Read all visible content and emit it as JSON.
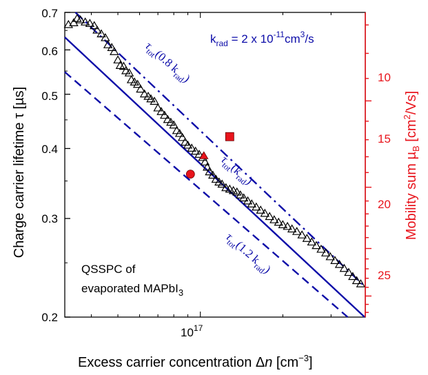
{
  "chart_data": {
    "type": "scatter",
    "xlabel": "Excess carrier concentration Δn [cm⁻³]",
    "ylabel": "Charge carrier lifetime τ [µs]",
    "y2label": "Mobility sum µB [cm²/Vs]",
    "x_scale": "log",
    "y_scale": "log",
    "xlim": [
      3.2e+16,
      4e+17
    ],
    "ylim": [
      0.2,
      0.7
    ],
    "x_tick_labels": [
      {
        "value": 1e+17,
        "label": "10^17"
      }
    ],
    "y_ticks": [
      0.2,
      0.3,
      0.4,
      0.5,
      0.6,
      0.7
    ],
    "y_tick_labels": [
      "0.2",
      "0.3",
      "0.4",
      "0.5",
      "0.6",
      "0.7"
    ],
    "y2_ticks": [
      10,
      15,
      20,
      25
    ],
    "y2_tick_labels": [
      "10",
      "15",
      "20",
      "25"
    ],
    "y2_lim_at_ybounds": {
      "at_y_0.7": 6.6,
      "at_y_0.2": 27.6
    },
    "annotation_krad": "k_rad = 2 x 10^-11 cm³/s",
    "inset_text": [
      "QSSPC of",
      "evaporated MAPbI₃"
    ],
    "series": [
      {
        "marker": "open-triangle",
        "color": "#000000",
        "points": [
          [
            3.3e+16,
            0.665
          ],
          [
            3.45e+16,
            0.67
          ],
          [
            3.55e+16,
            0.682
          ],
          [
            3.65e+16,
            0.678
          ],
          [
            3.8e+16,
            0.672
          ],
          [
            3.95e+16,
            0.668
          ],
          [
            4.1e+16,
            0.662
          ],
          [
            4.2e+16,
            0.65
          ],
          [
            4.35e+16,
            0.64
          ],
          [
            4.5e+16,
            0.63
          ],
          [
            4.6e+16,
            0.612
          ],
          [
            4.75e+16,
            0.605
          ],
          [
            4.85e+16,
            0.595
          ],
          [
            5e+16,
            0.575
          ],
          [
            5.1e+16,
            0.562
          ],
          [
            5.25e+16,
            0.56
          ],
          [
            5.35e+16,
            0.55
          ],
          [
            5.5e+16,
            0.545
          ],
          [
            5.6e+16,
            0.53
          ],
          [
            5.75e+16,
            0.525
          ],
          [
            5.9e+16,
            0.52
          ],
          [
            6.05e+16,
            0.51
          ],
          [
            6.25e+16,
            0.5
          ],
          [
            6.45e+16,
            0.495
          ],
          [
            6.6e+16,
            0.49
          ],
          [
            6.8e+16,
            0.485
          ],
          [
            7e+16,
            0.472
          ],
          [
            7.2e+16,
            0.465
          ],
          [
            7.4e+16,
            0.458
          ],
          [
            7.6e+16,
            0.45
          ],
          [
            7.8e+16,
            0.445
          ],
          [
            8e+16,
            0.44
          ],
          [
            8.2e+16,
            0.43
          ],
          [
            8.4e+16,
            0.425
          ],
          [
            8.6e+16,
            0.418
          ],
          [
            8.8e+16,
            0.41
          ],
          [
            9e+16,
            0.405
          ],
          [
            9.3e+16,
            0.4
          ],
          [
            9.6e+16,
            0.395
          ],
          [
            9.9e+16,
            0.39
          ],
          [
            1.02e+17,
            0.385
          ],
          [
            1.04e+17,
            0.378
          ],
          [
            1.06e+17,
            0.37
          ],
          [
            1.08e+17,
            0.363
          ],
          [
            1.11e+17,
            0.358
          ],
          [
            1.14e+17,
            0.352
          ],
          [
            1.17e+17,
            0.348
          ],
          [
            1.2e+17,
            0.345
          ],
          [
            1.24e+17,
            0.34
          ],
          [
            1.28e+17,
            0.338
          ],
          [
            1.32e+17,
            0.336
          ],
          [
            1.36e+17,
            0.334
          ],
          [
            1.4e+17,
            0.33
          ],
          [
            1.44e+17,
            0.326
          ],
          [
            1.49e+17,
            0.322
          ],
          [
            1.54e+17,
            0.318
          ],
          [
            1.6e+17,
            0.314
          ],
          [
            1.66e+17,
            0.31
          ],
          [
            1.72e+17,
            0.306
          ],
          [
            1.79e+17,
            0.302
          ],
          [
            1.86e+17,
            0.298
          ],
          [
            1.93e+17,
            0.295
          ],
          [
            2e+17,
            0.292
          ],
          [
            2.08e+17,
            0.29
          ],
          [
            2.16e+17,
            0.287
          ],
          [
            2.25e+17,
            0.284
          ],
          [
            2.35e+17,
            0.28
          ],
          [
            2.45e+17,
            0.276
          ],
          [
            2.55e+17,
            0.272
          ],
          [
            2.65e+17,
            0.268
          ],
          [
            2.76e+17,
            0.264
          ],
          [
            2.87e+17,
            0.26
          ],
          [
            2.98e+17,
            0.256
          ],
          [
            3.1e+17,
            0.252
          ],
          [
            3.22e+17,
            0.248
          ],
          [
            3.35e+17,
            0.244
          ],
          [
            3.48e+17,
            0.24
          ],
          [
            3.6e+17,
            0.236
          ],
          [
            3.72e+17,
            0.232
          ],
          [
            3.85e+17,
            0.229
          ]
        ]
      },
      {
        "marker": "filled-square",
        "color": "#e8141c",
        "points": [
          [
            1.28e+17,
            0.42
          ]
        ]
      },
      {
        "marker": "filled-triangle",
        "color": "#e8141c",
        "points": [
          [
            1.03e+17,
            0.388
          ]
        ]
      },
      {
        "marker": "filled-circle",
        "color": "#e8141c",
        "points": [
          [
            9.2e+16,
            0.36
          ]
        ]
      }
    ],
    "curves": [
      {
        "name": "τtot(0.8 krad)",
        "style": "dash-dot",
        "color": "#0a0aa8",
        "points": [
          [
            3.5e+16,
            0.7
          ],
          [
            3.98e+17,
            0.227
          ]
        ]
      },
      {
        "name": "τtot(krad)",
        "style": "solid",
        "color": "#0a0aa8",
        "points": [
          [
            3.2e+16,
            0.632
          ],
          [
            3.98e+17,
            0.2
          ]
        ]
      },
      {
        "name": "τtot(1.2 krad)",
        "style": "dashed",
        "color": "#0a0aa8",
        "points": [
          [
            3.2e+16,
            0.548
          ],
          [
            3.45e+17,
            0.2
          ]
        ]
      }
    ],
    "curve_labels": [
      {
        "main": "τ",
        "sub": "tot",
        "rest": "(0.8 k",
        "sub2": "rad",
        "end": ")"
      },
      {
        "main": "τ",
        "sub": "tot",
        "rest": "(k",
        "sub2": "rad",
        "end": ")"
      },
      {
        "main": "τ",
        "sub": "tot",
        "rest": "(1.2 k",
        "sub2": "rad",
        "end": ")"
      }
    ],
    "colors": {
      "curves": "#0a0aa8",
      "highlight": "#e8141c",
      "data": "#000000"
    }
  }
}
